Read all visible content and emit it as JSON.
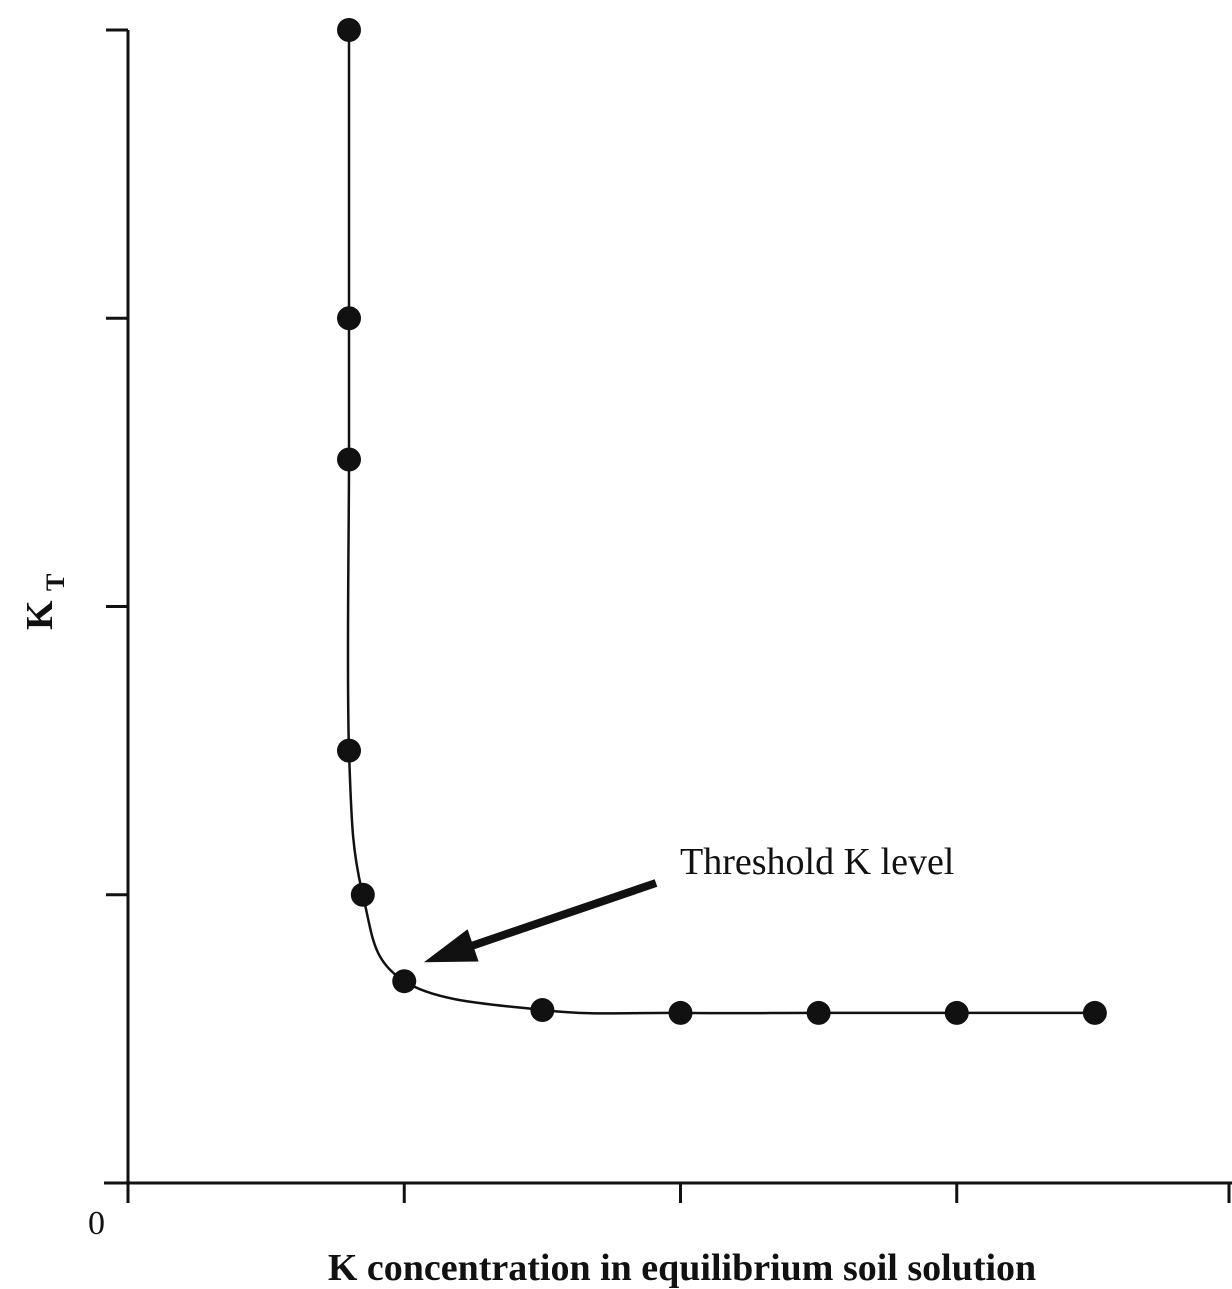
{
  "chart_data": {
    "type": "scatter",
    "title": "",
    "xlabel": "K concentration in equilibrium soil solution",
    "ylabel": "K",
    "ylabel_subscript": "T",
    "origin_label": "0",
    "x_range": [
      0,
      4
    ],
    "y_range": [
      0,
      4
    ],
    "x_tick_values": [
      0,
      1,
      2,
      3,
      4
    ],
    "y_tick_values": [
      0,
      1,
      2,
      3,
      4
    ],
    "grid": false,
    "legend": "none",
    "series": [
      {
        "marker": "filled-circle",
        "line": "smooth",
        "points": [
          {
            "x": 0.8,
            "y": 4.0
          },
          {
            "x": 0.8,
            "y": 3.0
          },
          {
            "x": 0.8,
            "y": 2.51
          },
          {
            "x": 0.8,
            "y": 1.5
          },
          {
            "x": 0.85,
            "y": 1.0
          },
          {
            "x": 1.0,
            "y": 0.7
          },
          {
            "x": 1.5,
            "y": 0.6
          },
          {
            "x": 2.0,
            "y": 0.59
          },
          {
            "x": 2.5,
            "y": 0.59
          },
          {
            "x": 3.0,
            "y": 0.59
          },
          {
            "x": 3.5,
            "y": 0.59
          }
        ]
      }
    ],
    "annotations": [
      {
        "text": "Threshold K level",
        "target": {
          "x": 1.1,
          "y": 0.78
        },
        "arrow": true
      }
    ],
    "colors": {
      "ink": "#111111",
      "background": "#ffffff"
    }
  }
}
